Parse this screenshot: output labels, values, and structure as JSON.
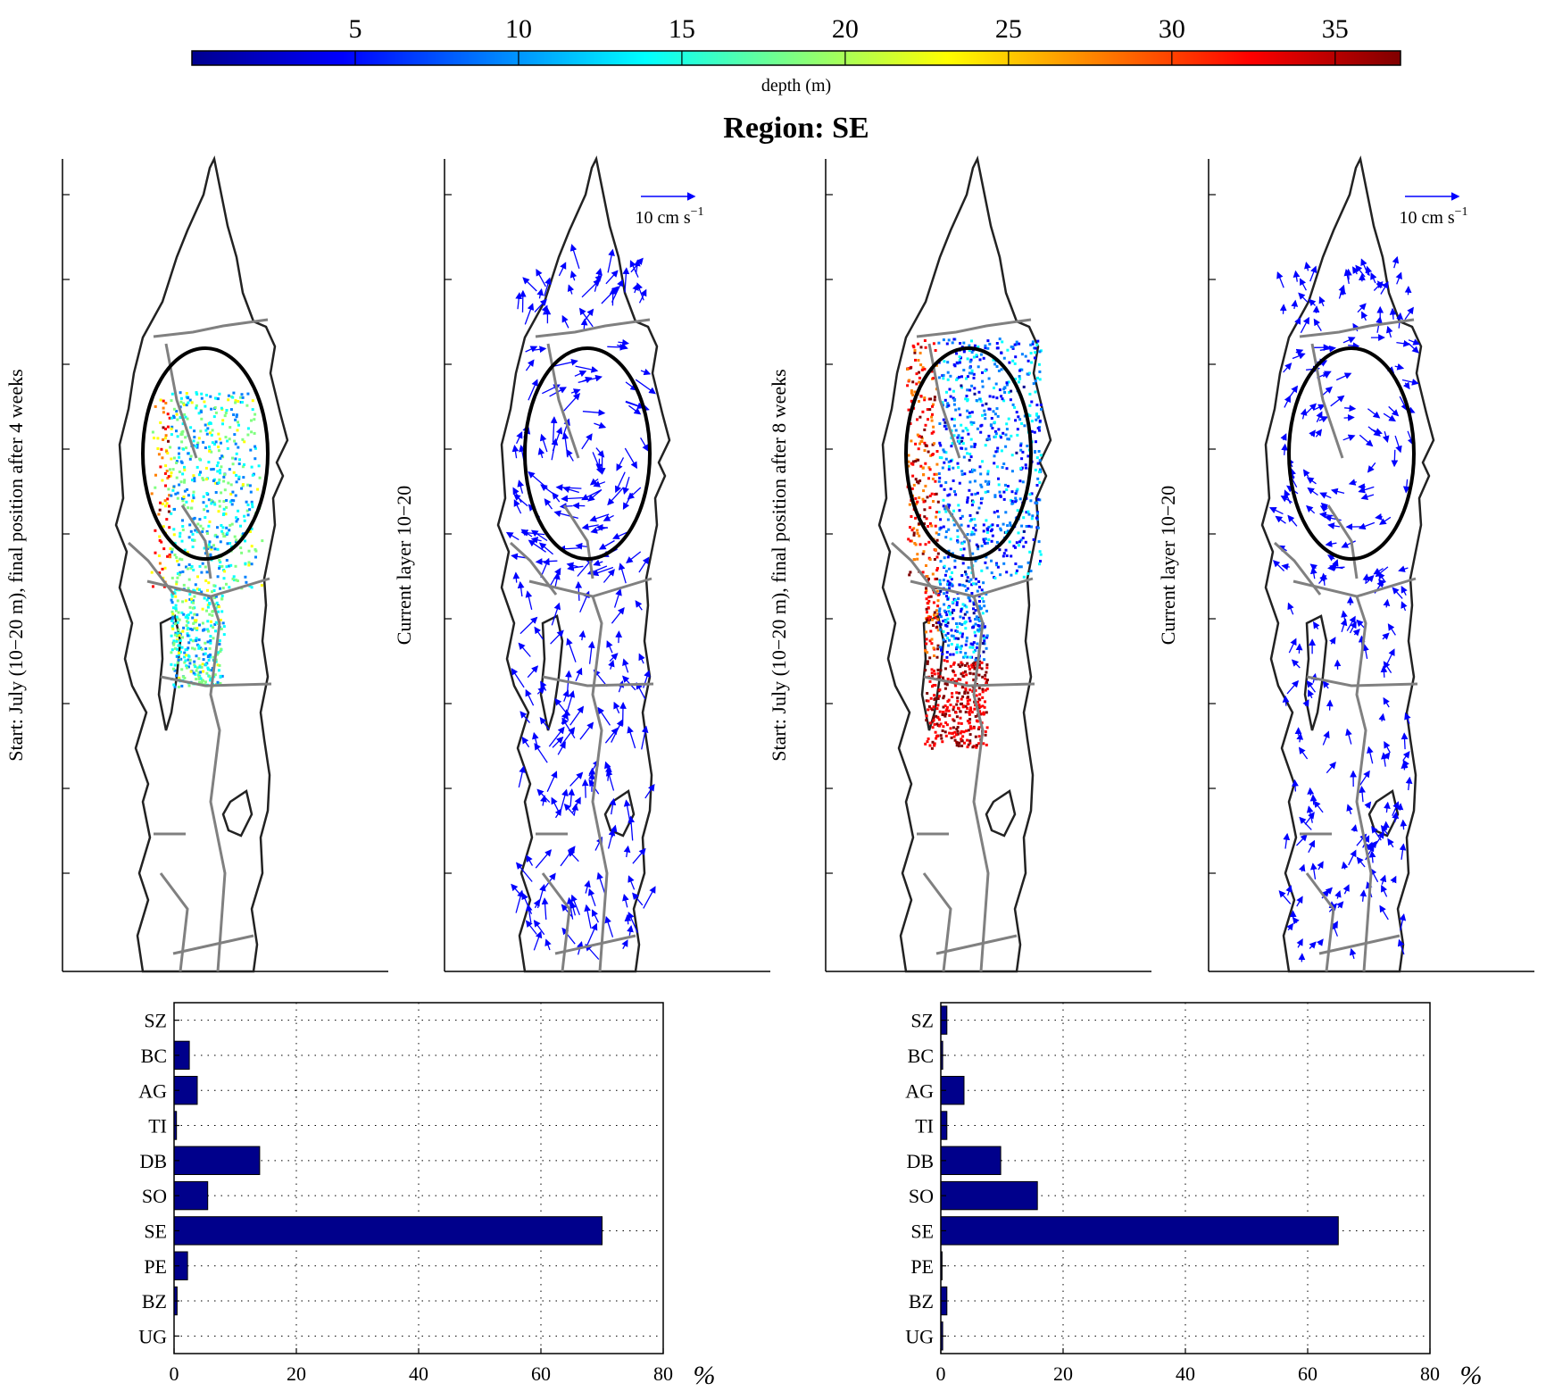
{
  "colorbar": {
    "label": "depth (m)",
    "ticks": [
      5,
      10,
      15,
      20,
      25,
      30,
      35
    ],
    "range": [
      0,
      37
    ],
    "colors": [
      "#00008f",
      "#0000ff",
      "#0080ff",
      "#00ffff",
      "#80ff80",
      "#ffff00",
      "#ff8000",
      "#ff0000",
      "#800000"
    ]
  },
  "title": "Region: SE",
  "map_panels": [
    {
      "kind": "particles",
      "ylabel": "Start: July (10−20 m), final position after 4 weeks",
      "spread": "4 weeks"
    },
    {
      "kind": "currents",
      "ylabel": "Current layer 10−20",
      "scale_label": "10 cm s",
      "scale_exp": "−1"
    },
    {
      "kind": "particles",
      "ylabel": "Start: July (10−20 m), final position after 8 weeks",
      "spread": "8 weeks"
    },
    {
      "kind": "currents",
      "ylabel": "Current layer 10−20",
      "scale_label": "10 cm s",
      "scale_exp": "−1"
    }
  ],
  "chart_data": [
    {
      "type": "bar",
      "orientation": "horizontal",
      "categories": [
        "SZ",
        "BC",
        "AG",
        "TI",
        "DB",
        "SO",
        "SE",
        "PE",
        "BZ",
        "UG"
      ],
      "values": [
        0,
        2.5,
        3.8,
        0.4,
        14,
        5.5,
        70,
        2.2,
        0.5,
        0
      ],
      "xlim": [
        0,
        80
      ],
      "xticks": [
        0,
        20,
        40,
        60,
        80
      ],
      "xlabel": "%",
      "grid": true,
      "bar_color": "#00008b"
    },
    {
      "type": "bar",
      "orientation": "horizontal",
      "categories": [
        "SZ",
        "BC",
        "AG",
        "TI",
        "DB",
        "SO",
        "SE",
        "PE",
        "BZ",
        "UG"
      ],
      "values": [
        1,
        0.3,
        3.8,
        1,
        9.8,
        15.8,
        65,
        0.2,
        1,
        0.3
      ],
      "xlim": [
        0,
        80
      ],
      "xticks": [
        0,
        20,
        40,
        60,
        80
      ],
      "xlabel": "%",
      "grid": true,
      "bar_color": "#00008b"
    }
  ]
}
